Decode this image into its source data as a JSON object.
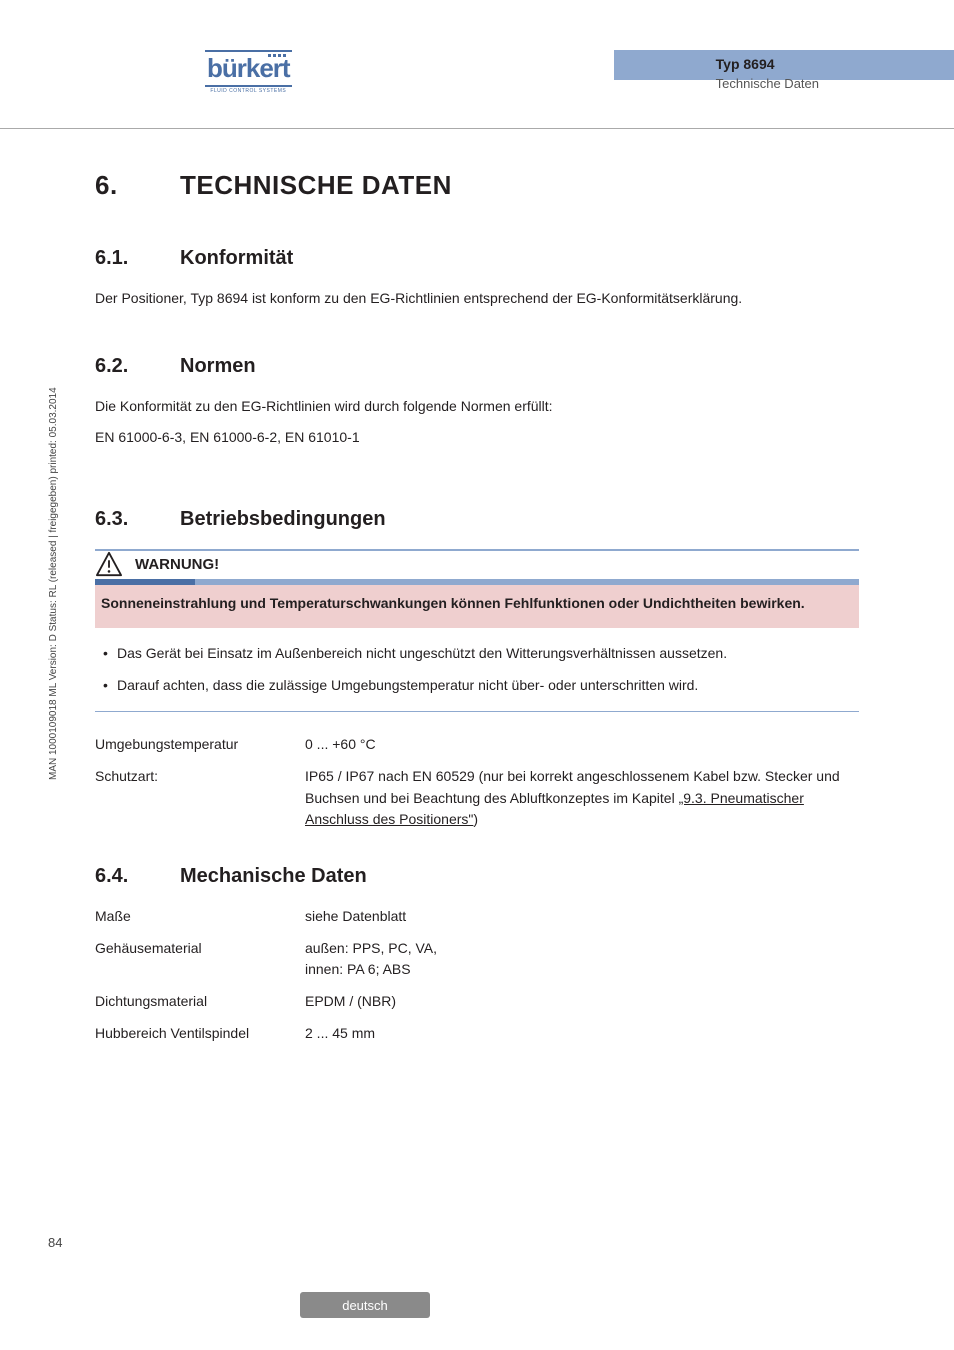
{
  "header": {
    "logo_text": "bürkert",
    "logo_sub": "FLUID CONTROL SYSTEMS",
    "typ": "Typ 8694",
    "subtitle": "Technische Daten"
  },
  "colors": {
    "accent_light": "#8fa9cf",
    "accent_dark": "#4a6fa5",
    "warn_bg": "#efcfcf"
  },
  "h1": {
    "num": "6.",
    "text": "TECHNISCHE DATEN"
  },
  "s61": {
    "num": "6.1.",
    "title": "Konformität",
    "body": "Der Positioner, Typ 8694 ist konform zu den EG-Richtlinien entsprechend der EG-Konformitätserklärung."
  },
  "s62": {
    "num": "6.2.",
    "title": "Normen",
    "body1": "Die Konformität zu den EG-Richtlinien wird durch folgende Normen erfüllt:",
    "body2": "EN 61000-6-3, EN 61000-6-2, EN 61010-1"
  },
  "s63": {
    "num": "6.3.",
    "title": "Betriebsbedingungen",
    "warn_label": "WARNUNG!",
    "warn_lead": "Sonneneinstrahlung und Temperaturschwankungen können Fehlfunktionen oder Undichtheiten bewirken.",
    "warn_items": [
      "Das Gerät bei Einsatz im Außenbereich nicht ungeschützt den Witterungsverhältnissen aussetzen.",
      "Darauf achten, dass die zulässige Umgebungstemperatur nicht über- oder unterschritten wird."
    ],
    "rows": [
      {
        "label": "Umgebungstemperatur",
        "value": "0 ... +60 °C"
      },
      {
        "label": "Schutzart:",
        "value": "IP65 / IP67 nach EN 60529\n(nur bei korrekt angeschlossenem Kabel bzw. Stecker und Buchsen und bei Beachtung des Abluftkonzeptes im Kapitel ",
        "link": "„9.3. Pneumatischer Anschluss des Positioners\"",
        "after": ")"
      }
    ]
  },
  "s64": {
    "num": "6.4.",
    "title": "Mechanische Daten",
    "rows": [
      {
        "label": "Maße",
        "value": "siehe Datenblatt"
      },
      {
        "label": "Gehäusematerial",
        "value": "außen: PPS, PC, VA,\ninnen: PA 6; ABS"
      },
      {
        "label": "Dichtungsmaterial",
        "value": "EPDM / (NBR)"
      },
      {
        "label": "Hubbereich Ventilspindel",
        "value": "2 ... 45 mm"
      }
    ]
  },
  "side_text": "MAN 1000109018 ML Version: D Status: RL (released | freigegeben) printed: 05.03.2014",
  "page_num": "84",
  "footer_lang": "deutsch"
}
